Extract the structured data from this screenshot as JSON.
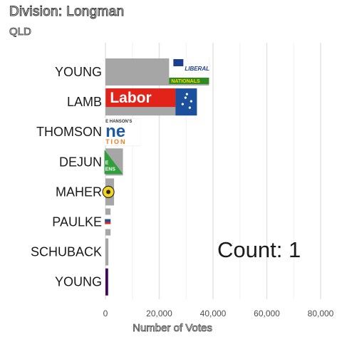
{
  "header": {
    "title": "Division: Longman",
    "subtitle": "QLD"
  },
  "counter": {
    "label": "Count:",
    "value": "1"
  },
  "chart_data": {
    "type": "bar",
    "orientation": "horizontal",
    "title": "Division: Longman",
    "subtitle": "QLD",
    "xlabel": "Number of Votes",
    "ylabel": "",
    "xlim": [
      0,
      85000
    ],
    "xticks": [
      0,
      20000,
      40000,
      60000,
      80000
    ],
    "xtick_labels": [
      "0",
      "20,000",
      "40,000",
      "60,000",
      "80,000"
    ],
    "grid": true,
    "categories": [
      "YOUNG",
      "LAMB",
      "THOMSON",
      "DEJUN",
      "MAHER",
      "PAULKE",
      "SCHUBACK",
      "YOUNG"
    ],
    "values": [
      38500,
      34000,
      13000,
      6500,
      3200,
      1900,
      1100,
      1000
    ],
    "party_logos": [
      "liberal-national-logo",
      "labor-logo",
      "one-nation-logo",
      "greens-logo",
      "party-logo-yellow",
      "party-logo-flag",
      "",
      ""
    ],
    "bar_colors": [
      "#a6a6a6",
      "#a6a6a6",
      "#a6a6a6",
      "#a6a6a6",
      "#a6a6a6",
      "#a6a6a6",
      "#a6a6a6",
      "#3d0a53"
    ]
  }
}
